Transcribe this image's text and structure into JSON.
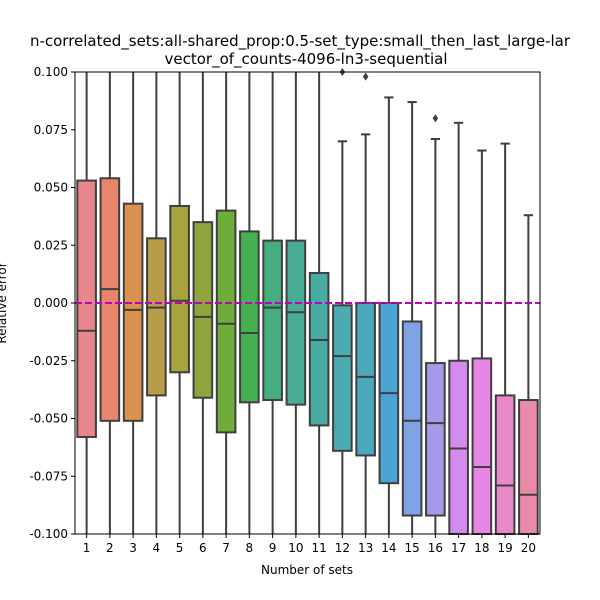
{
  "chart_data": {
    "type": "box",
    "title_line1": "n-correlated_sets:all-shared_prop:0.5-set_type:small_then_last_large-lar",
    "title_line2": "vector_of_counts-4096-ln3-sequential",
    "xlabel": "Number of sets",
    "ylabel": "Relative error",
    "ylim": [
      -0.1,
      0.1
    ],
    "yticks": [
      "0.100",
      "0.075",
      "0.050",
      "0.025",
      "0.000",
      "-0.025",
      "-0.050",
      "-0.075",
      "-0.100"
    ],
    "ytick_values": [
      0.1,
      0.075,
      0.05,
      0.025,
      0.0,
      -0.025,
      -0.05,
      -0.075,
      -0.1
    ],
    "reference_line": {
      "y": 0.0,
      "color": "#bf00bf",
      "style": "dashed"
    },
    "categories": [
      "1",
      "2",
      "3",
      "4",
      "5",
      "6",
      "7",
      "8",
      "9",
      "10",
      "11",
      "12",
      "13",
      "14",
      "15",
      "16",
      "17",
      "18",
      "19",
      "20"
    ],
    "colors": [
      "#e8868b",
      "#e8866d",
      "#d9914e",
      "#b99c4a",
      "#a8a33c",
      "#8ea53b",
      "#6fad3a",
      "#44b04f",
      "#46ae7e",
      "#48ac94",
      "#49aca0",
      "#4aacae",
      "#4aa9bd",
      "#4aa3d3",
      "#7fa4e6",
      "#a999e9",
      "#d38ced",
      "#e787e3",
      "#e888c8",
      "#e98aab"
    ],
    "boxes": [
      {
        "q1": -0.058,
        "median": -0.012,
        "q3": 0.053,
        "whisker_low": -0.1,
        "whisker_high": 0.1,
        "outliers": []
      },
      {
        "q1": -0.051,
        "median": 0.006,
        "q3": 0.054,
        "whisker_low": -0.1,
        "whisker_high": 0.1,
        "outliers": []
      },
      {
        "q1": -0.051,
        "median": -0.003,
        "q3": 0.043,
        "whisker_low": -0.1,
        "whisker_high": 0.1,
        "outliers": []
      },
      {
        "q1": -0.04,
        "median": -0.002,
        "q3": 0.028,
        "whisker_low": -0.1,
        "whisker_high": 0.1,
        "outliers": []
      },
      {
        "q1": -0.03,
        "median": 0.001,
        "q3": 0.042,
        "whisker_low": -0.1,
        "whisker_high": 0.1,
        "outliers": []
      },
      {
        "q1": -0.041,
        "median": -0.006,
        "q3": 0.035,
        "whisker_low": -0.1,
        "whisker_high": 0.1,
        "outliers": []
      },
      {
        "q1": -0.056,
        "median": -0.009,
        "q3": 0.04,
        "whisker_low": -0.1,
        "whisker_high": 0.1,
        "outliers": []
      },
      {
        "q1": -0.043,
        "median": -0.013,
        "q3": 0.031,
        "whisker_low": -0.1,
        "whisker_high": 0.1,
        "outliers": []
      },
      {
        "q1": -0.042,
        "median": -0.002,
        "q3": 0.027,
        "whisker_low": -0.1,
        "whisker_high": 0.1,
        "outliers": []
      },
      {
        "q1": -0.044,
        "median": -0.004,
        "q3": 0.027,
        "whisker_low": -0.1,
        "whisker_high": 0.1,
        "outliers": []
      },
      {
        "q1": -0.053,
        "median": -0.016,
        "q3": 0.013,
        "whisker_low": -0.1,
        "whisker_high": 0.1,
        "outliers": []
      },
      {
        "q1": -0.064,
        "median": -0.023,
        "q3": -0.001,
        "whisker_low": -0.1,
        "whisker_high": 0.07,
        "outliers": [
          0.1
        ]
      },
      {
        "q1": -0.066,
        "median": -0.032,
        "q3": 0.0,
        "whisker_low": -0.1,
        "whisker_high": 0.073,
        "outliers": [
          0.098
        ]
      },
      {
        "q1": -0.078,
        "median": -0.039,
        "q3": 0.0,
        "whisker_low": -0.1,
        "whisker_high": 0.089,
        "outliers": []
      },
      {
        "q1": -0.092,
        "median": -0.051,
        "q3": -0.008,
        "whisker_low": -0.1,
        "whisker_high": 0.087,
        "outliers": []
      },
      {
        "q1": -0.092,
        "median": -0.052,
        "q3": -0.026,
        "whisker_low": -0.1,
        "whisker_high": 0.071,
        "outliers": [
          0.08
        ]
      },
      {
        "q1": -0.1,
        "median": -0.063,
        "q3": -0.025,
        "whisker_low": -0.1,
        "whisker_high": 0.078,
        "outliers": []
      },
      {
        "q1": -0.1,
        "median": -0.071,
        "q3": -0.024,
        "whisker_low": -0.1,
        "whisker_high": 0.066,
        "outliers": []
      },
      {
        "q1": -0.1,
        "median": -0.079,
        "q3": -0.04,
        "whisker_low": -0.1,
        "whisker_high": 0.069,
        "outliers": []
      },
      {
        "q1": -0.1,
        "median": -0.083,
        "q3": -0.042,
        "whisker_low": -0.1,
        "whisker_high": 0.038,
        "outliers": []
      }
    ]
  }
}
